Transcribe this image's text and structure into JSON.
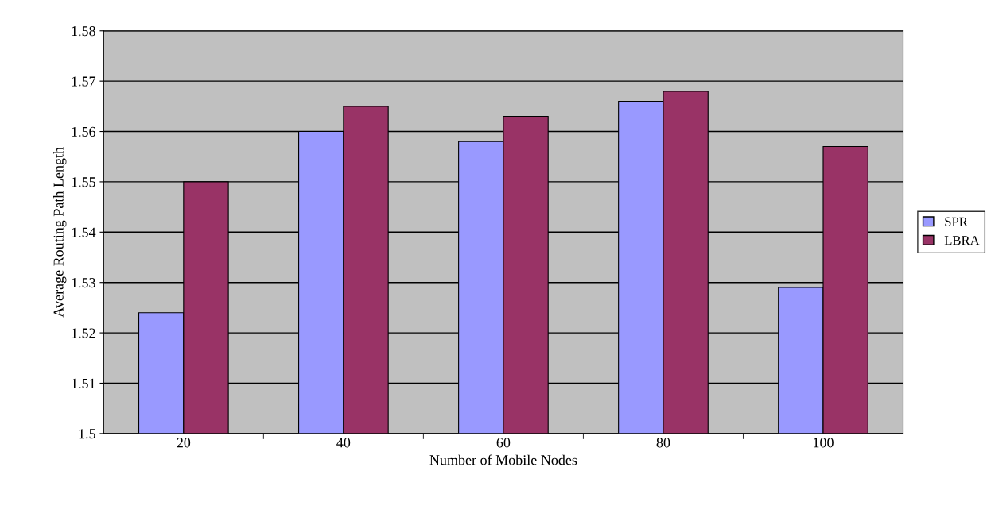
{
  "chart_data": {
    "type": "bar",
    "xlabel": "Number of Mobile Nodes",
    "ylabel": "Average Routing Path Length",
    "categories": [
      "20",
      "40",
      "60",
      "80",
      "100"
    ],
    "series": [
      {
        "name": "SPR",
        "color": "#9999ff",
        "values": [
          1.524,
          1.56,
          1.558,
          1.566,
          1.529
        ]
      },
      {
        "name": "LBRA",
        "color": "#993366",
        "values": [
          1.55,
          1.565,
          1.563,
          1.568,
          1.557
        ]
      }
    ],
    "ylim": [
      1.5,
      1.58
    ],
    "yticks": [
      1.5,
      1.51,
      1.52,
      1.53,
      1.54,
      1.55,
      1.56,
      1.57,
      1.58
    ],
    "grid": "y",
    "legend": "right"
  }
}
